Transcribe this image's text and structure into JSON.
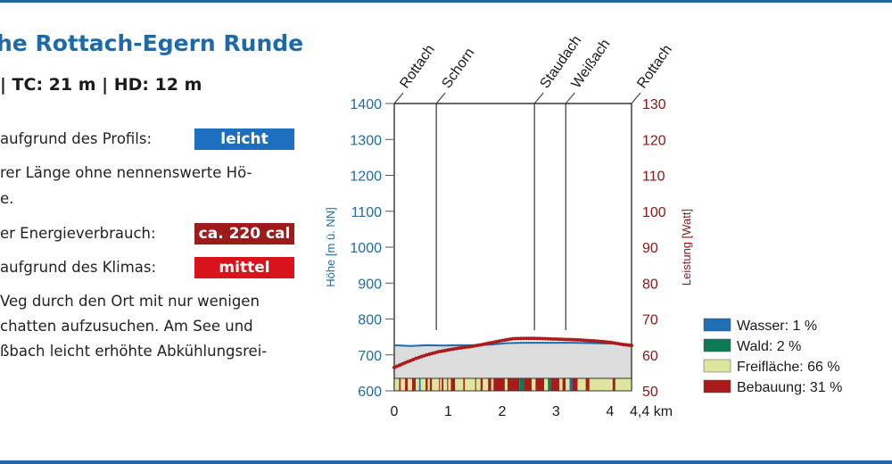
{
  "header": {
    "title": "he Rottach-Egern Runde",
    "stats": "| TC: 21 m | HD: 12 m"
  },
  "ratings": [
    {
      "label": "aufgrund des Profils:",
      "badge": "leicht",
      "color": "#1e6fbe"
    },
    {
      "label": "er Energieverbrauch:",
      "badge": "ca. 220 cal",
      "color": "#9c1b1b"
    },
    {
      "label": "aufgrund des Klimas:",
      "badge": "mittel",
      "color": "#d8131b"
    }
  ],
  "text_blocks": {
    "length_line1": "rer Länge ohne nennenswerte Hö-",
    "length_line2": "e.",
    "climate_line1": "Veg durch den Ort mit nur wenigen",
    "climate_line2": "chatten aufzusuchen. Am See und",
    "climate_line3": "ßbach leicht erhöhte Abkühlungsrei-"
  },
  "chart_data": {
    "type": "area",
    "xlabel_unit": "km",
    "x_ticks": [
      "0",
      "1",
      "2",
      "3",
      "4"
    ],
    "x_end_label": "4,4 km",
    "xlim": [
      0,
      4.4
    ],
    "ylabel_left": "Höhe [m ü. NN]",
    "ylim_left": [
      600,
      1400
    ],
    "y_ticks_left": [
      "600",
      "700",
      "800",
      "900",
      "1000",
      "1100",
      "1200",
      "1300",
      "1400"
    ],
    "ylabel_right": "Leistung [Watt]",
    "ylim_right": [
      50,
      130
    ],
    "y_ticks_right": [
      "50",
      "60",
      "70",
      "80",
      "90",
      "100",
      "110",
      "120",
      "130"
    ],
    "waypoints": [
      {
        "name": "Rottach",
        "km": 0
      },
      {
        "name": "Schorn",
        "km": 0.78
      },
      {
        "name": "Staudach",
        "km": 2.6
      },
      {
        "name": "Weißach",
        "km": 3.18
      },
      {
        "name": "Rottach",
        "km": 4.4
      }
    ],
    "series": [
      {
        "name": "Höhe",
        "axis": "left",
        "style": "area",
        "x": [
          0,
          0.3,
          0.6,
          0.9,
          1.2,
          1.5,
          1.8,
          2.1,
          2.4,
          2.7,
          3.0,
          3.3,
          3.6,
          3.9,
          4.2,
          4.4
        ],
        "values": [
          727,
          725,
          727,
          726,
          727,
          727,
          729,
          733,
          734,
          734,
          734,
          734,
          733,
          732,
          731,
          729
        ]
      },
      {
        "name": "Leistung",
        "axis": "right",
        "style": "dotted",
        "x": [
          0,
          0.2,
          0.4,
          0.6,
          0.8,
          1.0,
          1.2,
          1.4,
          1.6,
          1.8,
          2.0,
          2.2,
          2.4,
          2.6,
          2.8,
          3.0,
          3.2,
          3.4,
          3.6,
          3.8,
          4.0,
          4.2,
          4.4
        ],
        "values": [
          56.5,
          57.8,
          59.0,
          60.0,
          60.8,
          61.4,
          61.9,
          62.3,
          62.8,
          63.4,
          64.0,
          64.5,
          64.6,
          64.6,
          64.5,
          64.4,
          64.3,
          64.2,
          64.0,
          63.8,
          63.5,
          63.0,
          62.6
        ]
      }
    ],
    "land_use": [
      {
        "name": "Wasser: 1 %",
        "color": "#1f6fb5"
      },
      {
        "name": "Wald: 2 %",
        "color": "#0e7a55"
      },
      {
        "name": "Freifläche: 66 %",
        "color": "#dde69c"
      },
      {
        "name": "Bebauung: 31 %",
        "color": "#a81c1c"
      }
    ],
    "colors": {
      "elevation_line": "#1e6aa8",
      "elevation_fill": "#dcdcdc",
      "power": "#a81c1c",
      "left_axis": "#1e6aa8",
      "right_axis": "#8c1515"
    }
  }
}
